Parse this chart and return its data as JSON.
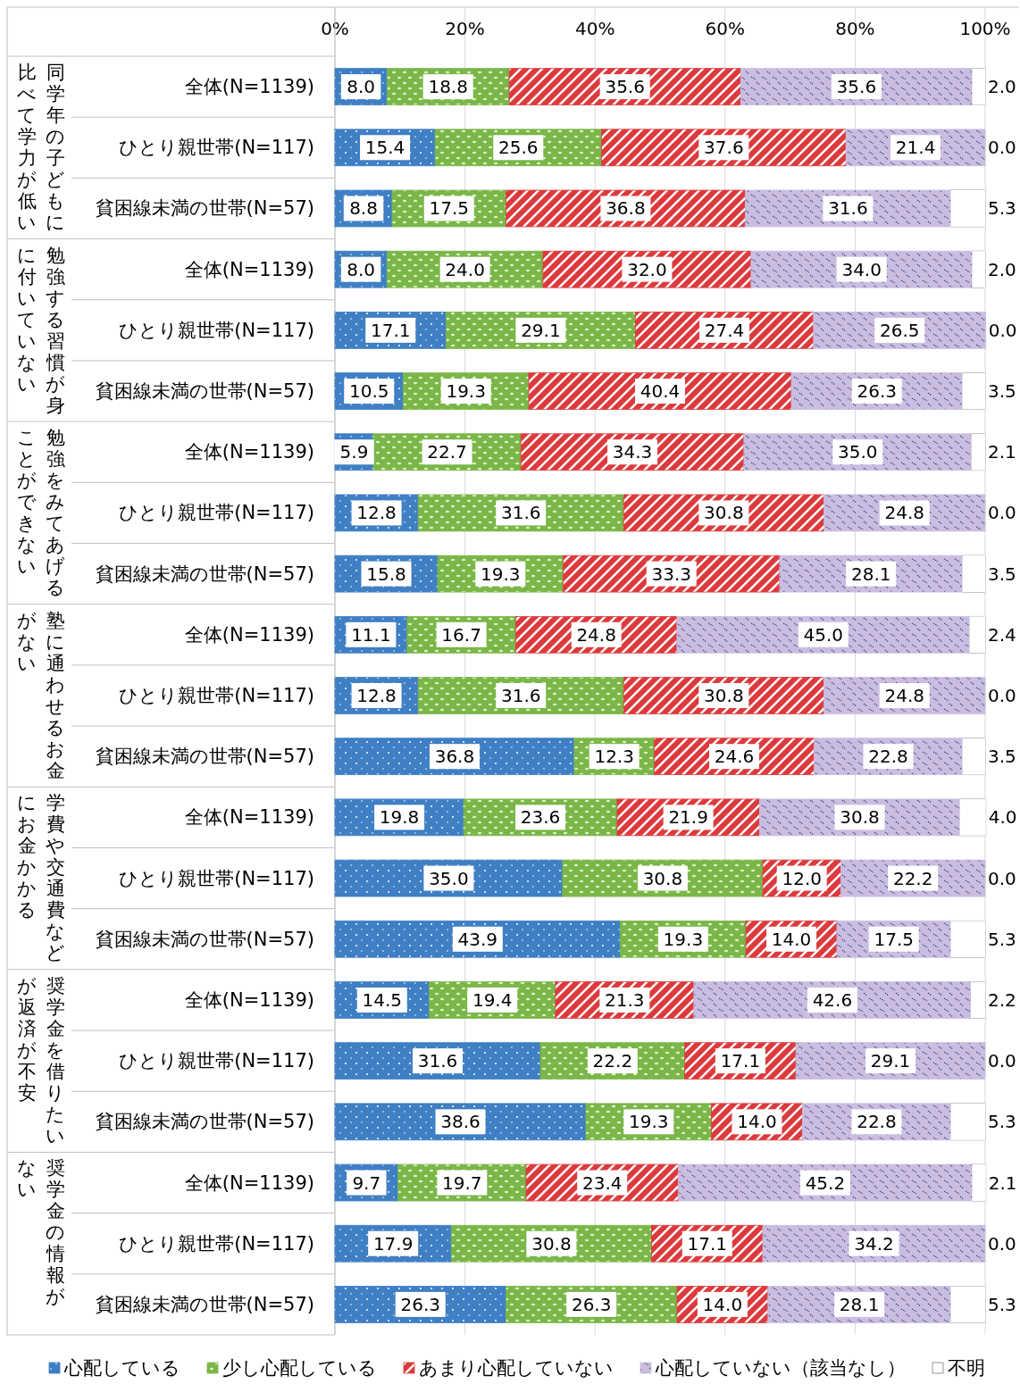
{
  "chart_data": {
    "type": "bar",
    "orientation": "horizontal",
    "stacked": true,
    "categories": [
      "全体(N=1139)",
      "ひとり親世帯(N=117)",
      "貧困線未満の世帯(N=57)",
      "全体(N=1139)",
      "ひとり親世帯(N=117)",
      "貧困線未満の世帯(N=57)",
      "全体(N=1139)",
      "ひとり親世帯(N=117)",
      "貧困線未満の世帯(N=57)",
      "全体(N=1139)",
      "ひとり親世帯(N=117)",
      "貧困線未満の世帯(N=57)",
      "全体(N=1139)",
      "ひとり親世帯(N=117)",
      "貧困線未満の世帯(N=57)",
      "全体(N=1139)",
      "ひとり親世帯(N=117)",
      "貧困線未満の世帯(N=57)",
      "全体(N=1139)",
      "ひとり親世帯(N=117)",
      "貧困線未満の世帯(N=57)"
    ],
    "annotations": [
      "同学年の子どもに比べて学力が低い",
      "勉強する習慣が身に付いていない",
      "勉強をみてあげることができない",
      "塾に通わせるお金がない",
      "学費や交通費などにお金かかる",
      "奨学金を借りたいが返済が不安",
      "奨学金の情報がない"
    ],
    "series": [
      {
        "name": "心配している",
        "color": "#3f7fc4",
        "values": [
          8.0,
          15.4,
          8.8,
          8.0,
          17.1,
          10.5,
          5.9,
          12.8,
          15.8,
          11.1,
          12.8,
          36.8,
          19.8,
          35.0,
          43.9,
          14.5,
          31.6,
          38.6,
          9.7,
          17.9,
          26.3
        ],
        "value_labels": [
          "8.0",
          "15.4",
          "8.8",
          "8.0",
          "17.1",
          "10.5",
          "5.9",
          "12.8",
          "15.8",
          "11.1",
          "12.8",
          "36.8",
          "19.8",
          "35.0",
          "43.9",
          "14.5",
          "31.6",
          "38.6",
          "9.7",
          "17.9",
          "26.3"
        ]
      },
      {
        "name": "少し心配している",
        "color": "#7ab648",
        "values": [
          18.8,
          25.6,
          17.5,
          24.0,
          29.1,
          19.3,
          22.7,
          31.6,
          19.3,
          16.7,
          31.6,
          12.3,
          23.6,
          30.8,
          19.3,
          19.4,
          22.2,
          19.3,
          19.7,
          30.8,
          26.3
        ],
        "value_labels": [
          "18.8",
          "25.6",
          "17.5",
          "24.0",
          "29.1",
          "19.3",
          "22.7",
          "31.6",
          "19.3",
          "16.7",
          "31.6",
          "12.3",
          "23.6",
          "30.8",
          "19.3",
          "19.4",
          "22.2",
          "19.3",
          "19.7",
          "30.8",
          "26.3"
        ]
      },
      {
        "name": "あまり心配していない",
        "color": "#dc3a3c",
        "values": [
          35.6,
          37.6,
          36.8,
          32.0,
          27.4,
          40.4,
          34.3,
          30.8,
          33.3,
          24.8,
          30.8,
          24.6,
          21.9,
          12.0,
          14.0,
          21.3,
          17.1,
          14.0,
          23.4,
          17.1,
          14.0
        ],
        "value_labels": [
          "35.6",
          "37.6",
          "36.8",
          "32.0",
          "27.4",
          "40.4",
          "34.3",
          "30.8",
          "33.3",
          "24.8",
          "30.8",
          "24.6",
          "21.9",
          "12.0",
          "14.0",
          "21.3",
          "17.1",
          "14.0",
          "23.4",
          "17.1",
          "14.0"
        ]
      },
      {
        "name": "心配していない（該当なし）",
        "color": "#cbbde0",
        "values": [
          35.6,
          21.4,
          31.6,
          34.0,
          26.5,
          26.3,
          35.0,
          24.8,
          28.1,
          45.0,
          24.8,
          22.8,
          30.8,
          22.2,
          17.5,
          42.6,
          29.1,
          22.8,
          45.2,
          34.2,
          28.1
        ],
        "value_labels": [
          "35.6",
          "21.4",
          "31.6",
          "34.0",
          "26.5",
          "26.3",
          "35.0",
          "24.8",
          "28.1",
          "45.0",
          "24.8",
          "22.8",
          "30.8",
          "22.2",
          "17.5",
          "42.6",
          "29.1",
          "22.8",
          "45.2",
          "34.2",
          "28.1"
        ]
      },
      {
        "name": "不明",
        "color": "#ffffff",
        "values": [
          2.0,
          0.0,
          5.3,
          2.0,
          0.0,
          3.5,
          2.1,
          0.0,
          3.5,
          2.4,
          0.0,
          3.5,
          4.0,
          0.0,
          5.3,
          2.2,
          0.0,
          5.3,
          2.1,
          0.0,
          5.3
        ],
        "value_labels": [
          "2.0",
          "0.0",
          "5.3",
          "2.0",
          "0.0",
          "3.5",
          "2.1",
          "0.0",
          "3.5",
          "2.4",
          "0.0",
          "3.5",
          "4.0",
          "0.0",
          "5.3",
          "2.2",
          "0.0",
          "5.3",
          "2.1",
          "0.0",
          "5.3"
        ]
      }
    ],
    "xlim": [
      0,
      100
    ],
    "xticks": [
      {
        "value": 0,
        "label": "0%"
      },
      {
        "value": 20,
        "label": "20%"
      },
      {
        "value": 40,
        "label": "40%"
      },
      {
        "value": 60,
        "label": "60%"
      },
      {
        "value": 80,
        "label": "80%"
      },
      {
        "value": 100,
        "label": "100%"
      }
    ],
    "grid": "x",
    "legend": "bottom"
  }
}
